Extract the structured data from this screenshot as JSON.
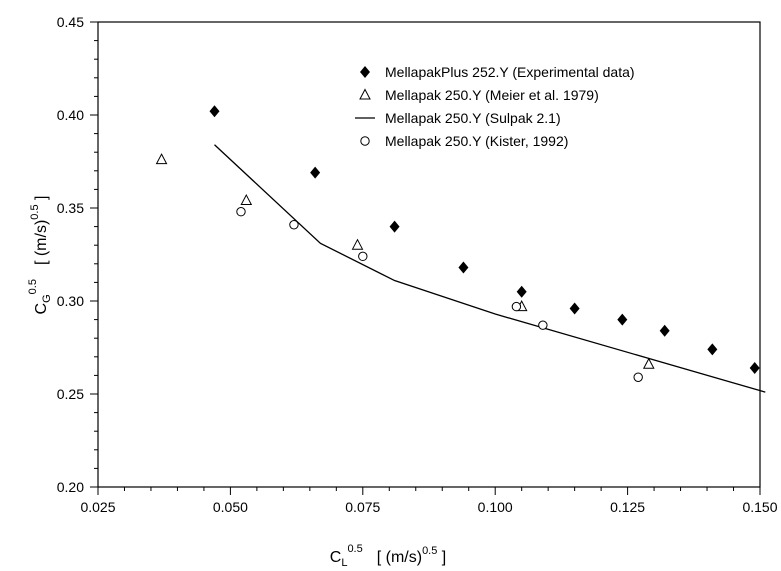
{
  "chart_data": {
    "type": "scatter",
    "title": "",
    "xlim": [
      0.025,
      0.15
    ],
    "ylim": [
      0.2,
      0.45
    ],
    "x_ticks": [
      "0.025",
      "0.050",
      "0.075",
      "0.100",
      "0.125",
      "0.150"
    ],
    "y_ticks": [
      "0.20",
      "0.25",
      "0.30",
      "0.35",
      "0.40",
      "0.45"
    ],
    "xlabel": {
      "base": "C",
      "sub": "L",
      "sup": "0.5",
      "units": "[ (m/s)",
      "units_sup": "0.5",
      "units_close": " ]"
    },
    "ylabel": {
      "base": "C",
      "sub": "G",
      "sup": "0.5",
      "units": "[ (m/s)",
      "units_sup": "0.5",
      "units_close": " ]"
    },
    "grid": false,
    "legend_position": "top-right",
    "series": [
      {
        "name": "MellapakPlus 252.Y (Experimental data)",
        "marker": "filled-diamond",
        "x": [
          0.047,
          0.066,
          0.081,
          0.094,
          0.105,
          0.115,
          0.124,
          0.132,
          0.141,
          0.149
        ],
        "y": [
          0.402,
          0.369,
          0.34,
          0.318,
          0.305,
          0.296,
          0.29,
          0.284,
          0.274,
          0.264
        ]
      },
      {
        "name": "Mellapak 250.Y (Meier et al. 1979)",
        "marker": "open-triangle",
        "x": [
          0.037,
          0.053,
          0.074,
          0.105,
          0.129
        ],
        "y": [
          0.376,
          0.354,
          0.33,
          0.297,
          0.266
        ]
      },
      {
        "name": "Mellapak 250.Y (Sulpak 2.1)",
        "marker": "line",
        "x": [
          0.047,
          0.067,
          0.081,
          0.1,
          0.151
        ],
        "y": [
          0.384,
          0.331,
          0.311,
          0.293,
          0.251
        ]
      },
      {
        "name": "Mellapak 250.Y (Kister, 1992)",
        "marker": "open-circle",
        "x": [
          0.052,
          0.062,
          0.075,
          0.104,
          0.109,
          0.127
        ],
        "y": [
          0.348,
          0.341,
          0.324,
          0.297,
          0.287,
          0.259
        ]
      }
    ]
  }
}
